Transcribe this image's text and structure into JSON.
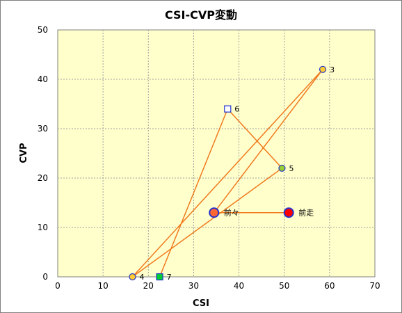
{
  "chart_data": {
    "type": "scatter",
    "title": "CSI-CVP変動",
    "xlabel": "CSI",
    "ylabel": "CVP",
    "xlim": [
      0,
      70
    ],
    "ylim": [
      0,
      50
    ],
    "xticks": [
      "0",
      "10",
      "20",
      "30",
      "40",
      "50",
      "60",
      "70"
    ],
    "yticks": [
      "0",
      "10",
      "20",
      "30",
      "40",
      "50"
    ],
    "grid": true,
    "plot_background": "#ffffcc",
    "line_color": "#f07a1e",
    "points": [
      {
        "label": "前走",
        "x": 51,
        "y": 13,
        "marker": "circle",
        "fill": "#ff0000",
        "stroke": "#2233cc",
        "size": "large"
      },
      {
        "label": "前々",
        "x": 34.5,
        "y": 13,
        "marker": "circle",
        "fill": "#ff6633",
        "stroke": "#2233cc",
        "size": "large"
      },
      {
        "label": "3",
        "x": 58.5,
        "y": 42,
        "marker": "circle",
        "fill": "#ffcc33",
        "stroke": "#2233cc",
        "size": "small"
      },
      {
        "label": "4",
        "x": 16.5,
        "y": 0,
        "marker": "circle",
        "fill": "#ffcc33",
        "stroke": "#2233cc",
        "size": "small"
      },
      {
        "label": "5",
        "x": 49.5,
        "y": 22,
        "marker": "circle",
        "fill": "#99cc33",
        "stroke": "#2233cc",
        "size": "small"
      },
      {
        "label": "6",
        "x": 37.5,
        "y": 34,
        "marker": "square",
        "fill": "#ffffff",
        "stroke": "#2233cc",
        "size": "small"
      },
      {
        "label": "7",
        "x": 22.5,
        "y": 0,
        "marker": "square",
        "fill": "#00cc33",
        "stroke": "#2233cc",
        "size": "small"
      }
    ]
  }
}
